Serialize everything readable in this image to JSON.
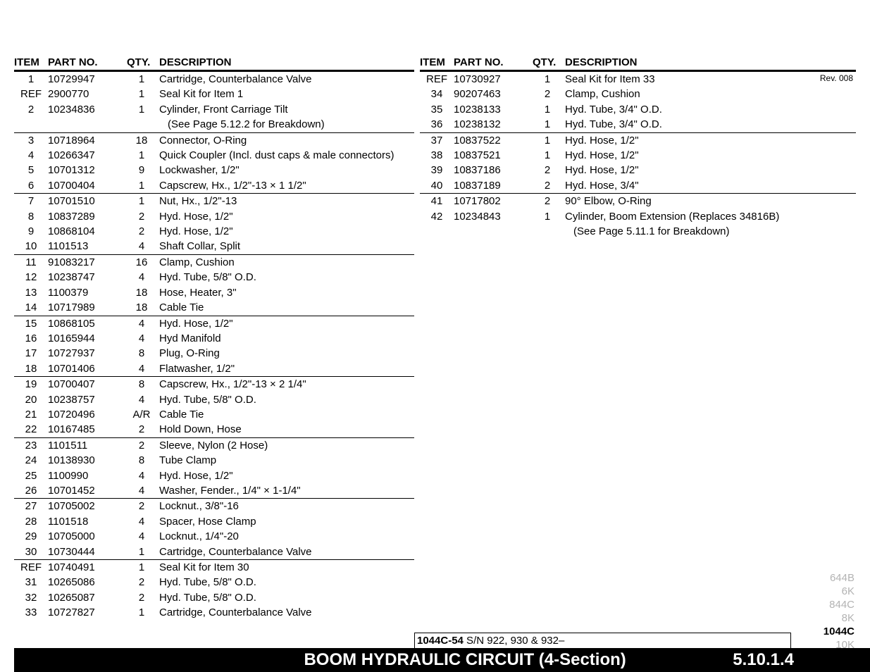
{
  "revision": "Rev. 008",
  "columns": {
    "item": "ITEM",
    "partno": "PART NO.",
    "qty": "QTY.",
    "desc": "DESCRIPTION"
  },
  "left_rows": [
    {
      "item": "1",
      "part": "10729947",
      "qty": "1",
      "desc": "Cartridge, Counterbalance Valve",
      "g": true
    },
    {
      "item": "REF",
      "part": "2900770",
      "qty": "1",
      "desc": "Seal Kit for Item 1"
    },
    {
      "item": "2",
      "part": "10234836",
      "qty": "1",
      "desc": "Cylinder, Front Carriage Tilt"
    },
    {
      "item": "",
      "part": "",
      "qty": "",
      "desc": "  (See Page 5.12.2 for Breakdown)"
    },
    {
      "item": "3",
      "part": "10718964",
      "qty": "18",
      "desc": "Connector, O-Ring",
      "g": true
    },
    {
      "item": "4",
      "part": "10266347",
      "qty": "1",
      "desc": "Quick Coupler (Incl. dust caps & male connectors)"
    },
    {
      "item": "5",
      "part": "10701312",
      "qty": "9",
      "desc": "Lockwasher, 1/2\""
    },
    {
      "item": "6",
      "part": "10700404",
      "qty": "1",
      "desc": "Capscrew, Hx., 1/2\"-13 × 1 1/2\""
    },
    {
      "item": "7",
      "part": "10701510",
      "qty": "1",
      "desc": "Nut, Hx., 1/2\"-13",
      "g": true
    },
    {
      "item": "8",
      "part": "10837289",
      "qty": "2",
      "desc": "Hyd. Hose, 1/2\""
    },
    {
      "item": "9",
      "part": "10868104",
      "qty": "2",
      "desc": "Hyd. Hose, 1/2\""
    },
    {
      "item": "10",
      "part": "1101513",
      "qty": "4",
      "desc": "Shaft Collar, Split"
    },
    {
      "item": "11",
      "part": "91083217",
      "qty": "16",
      "desc": "Clamp, Cushion",
      "g": true
    },
    {
      "item": "12",
      "part": "10238747",
      "qty": "4",
      "desc": "Hyd. Tube, 5/8\" O.D."
    },
    {
      "item": "13",
      "part": "1100379",
      "qty": "18",
      "desc": "Hose, Heater, 3\""
    },
    {
      "item": "14",
      "part": "10717989",
      "qty": "18",
      "desc": "Cable Tie"
    },
    {
      "item": "15",
      "part": "10868105",
      "qty": "4",
      "desc": "Hyd. Hose, 1/2\"",
      "g": true
    },
    {
      "item": "16",
      "part": "10165944",
      "qty": "4",
      "desc": "Hyd Manifold"
    },
    {
      "item": "17",
      "part": "10727937",
      "qty": "8",
      "desc": "Plug, O-Ring"
    },
    {
      "item": "18",
      "part": "10701406",
      "qty": "4",
      "desc": "Flatwasher, 1/2\""
    },
    {
      "item": "19",
      "part": "10700407",
      "qty": "8",
      "desc": "Capscrew, Hx., 1/2\"-13 × 2 1/4\"",
      "g": true
    },
    {
      "item": "20",
      "part": "10238757",
      "qty": "4",
      "desc": "Hyd. Tube, 5/8\" O.D."
    },
    {
      "item": "21",
      "part": "10720496",
      "qty": "A/R",
      "desc": "Cable Tie"
    },
    {
      "item": "22",
      "part": "10167485",
      "qty": "2",
      "desc": "Hold Down, Hose"
    },
    {
      "item": "23",
      "part": "1101511",
      "qty": "2",
      "desc": "Sleeve, Nylon (2 Hose)",
      "g": true
    },
    {
      "item": "24",
      "part": "10138930",
      "qty": "8",
      "desc": "Tube Clamp"
    },
    {
      "item": "25",
      "part": "1100990",
      "qty": "4",
      "desc": "Hyd. Hose, 1/2\""
    },
    {
      "item": "26",
      "part": "10701452",
      "qty": "4",
      "desc": "Washer, Fender., 1/4\" × 1-1/4\""
    },
    {
      "item": "27",
      "part": "10705002",
      "qty": "2",
      "desc": "Locknut., 3/8\"-16",
      "g": true
    },
    {
      "item": "28",
      "part": "1101518",
      "qty": "4",
      "desc": "Spacer, Hose Clamp"
    },
    {
      "item": "29",
      "part": "10705000",
      "qty": "4",
      "desc": "Locknut., 1/4\"-20"
    },
    {
      "item": "30",
      "part": "10730444",
      "qty": "1",
      "desc": "Cartridge, Counterbalance Valve"
    },
    {
      "item": "REF",
      "part": "10740491",
      "qty": "1",
      "desc": "Seal Kit for Item 30",
      "g": true
    },
    {
      "item": "31",
      "part": "10265086",
      "qty": "2",
      "desc": "Hyd. Tube, 5/8\" O.D."
    },
    {
      "item": "32",
      "part": "10265087",
      "qty": "2",
      "desc": "Hyd. Tube, 5/8\" O.D."
    },
    {
      "item": "33",
      "part": "10727827",
      "qty": "1",
      "desc": "Cartridge, Counterbalance Valve"
    }
  ],
  "right_rows": [
    {
      "item": "REF",
      "part": "10730927",
      "qty": "1",
      "desc": "Seal Kit for Item 33",
      "g": true
    },
    {
      "item": "34",
      "part": "90207463",
      "qty": "2",
      "desc": "Clamp, Cushion"
    },
    {
      "item": "35",
      "part": "10238133",
      "qty": "1",
      "desc": "Hyd. Tube, 3/4\" O.D."
    },
    {
      "item": "36",
      "part": "10238132",
      "qty": "1",
      "desc": "Hyd. Tube, 3/4\" O.D."
    },
    {
      "item": "37",
      "part": "10837522",
      "qty": "1",
      "desc": "Hyd. Hose, 1/2\"",
      "g": true
    },
    {
      "item": "38",
      "part": "10837521",
      "qty": "1",
      "desc": "Hyd. Hose, 1/2\""
    },
    {
      "item": "39",
      "part": "10837186",
      "qty": "2",
      "desc": "Hyd. Hose, 1/2\""
    },
    {
      "item": "40",
      "part": "10837189",
      "qty": "2",
      "desc": "Hyd. Hose, 3/4\""
    },
    {
      "item": "41",
      "part": "10717802",
      "qty": "2",
      "desc": "90° Elbow, O-Ring",
      "g": true
    },
    {
      "item": "42",
      "part": "10234843",
      "qty": "1",
      "desc": "Cylinder, Boom Extension (Replaces 34816B)"
    },
    {
      "item": "",
      "part": "",
      "qty": "",
      "desc": "  (See Page 5.11.1 for Breakdown)"
    }
  ],
  "footer": {
    "title": "BOOM HYDRAULIC CIRCUIT (4-Section)",
    "section": "5.10.1.4",
    "model_bold": "1044C-54",
    "model_rest": " S/N 922, 930 & 932–"
  },
  "side_models": [
    "644B",
    "6K",
    "844C",
    "8K",
    "1044C",
    "10K",
    "▼"
  ],
  "side_active_index": 4
}
